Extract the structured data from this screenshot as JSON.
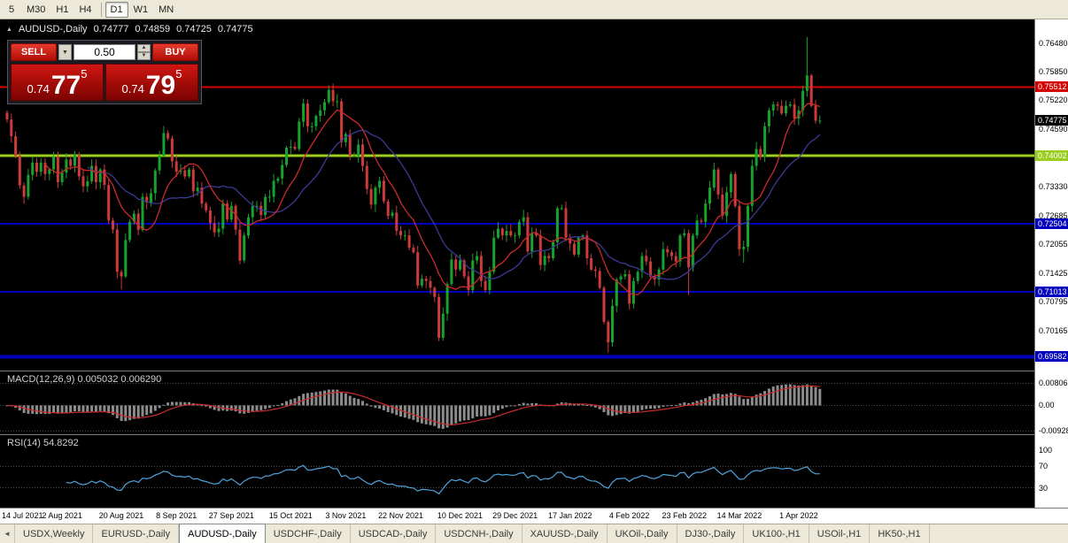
{
  "toolbar": {
    "groups": [
      [
        "5",
        "M30",
        "H1",
        "H4"
      ],
      [
        "D1",
        "W1",
        "MN"
      ]
    ],
    "active": "D1"
  },
  "header": {
    "icon": "▲",
    "symbol": "AUDUSD-,Daily",
    "open": "0.74777",
    "high": "0.74859",
    "low": "0.74725",
    "close": "0.74775"
  },
  "one_click": {
    "sell_label": "SELL",
    "buy_label": "BUY",
    "volume": "0.50",
    "dropdown_icon": "▼",
    "spinner_up_icon": "▲",
    "spinner_down_icon": "▼",
    "sell_price": {
      "base": "0.74",
      "pips": "77",
      "point": "5"
    },
    "buy_price": {
      "base": "0.74",
      "pips": "79",
      "point": "5"
    }
  },
  "chart": {
    "y_range": [
      0.693,
      0.7692
    ],
    "axis_labels": [
      "0.76480",
      "0.75850",
      "0.75220",
      "0.74590",
      "0.73330",
      "0.72685",
      "0.72055",
      "0.71425",
      "0.70795",
      "0.70165"
    ],
    "levels": [
      {
        "label": "0.75512",
        "value": 0.75512,
        "color": "#d40000",
        "width": 2
      },
      {
        "label": "0.74002",
        "value": 0.74002,
        "color": "#9bcd1e",
        "width": 3
      },
      {
        "label": "0.72504",
        "value": 0.72504,
        "color": "#0000be",
        "width": 2
      },
      {
        "label": "0.71013",
        "value": 0.71013,
        "color": "#0000be",
        "width": 2
      },
      {
        "label": "0.69582",
        "value": 0.69582,
        "color": "#0000be",
        "width": 4
      }
    ],
    "current_price": {
      "label": "0.74775",
      "value": 0.74775,
      "badge_color": "#000000"
    },
    "up_color": "#17a22b",
    "down_color": "#cc3a3a",
    "ma_fast_color": "#c92b2b",
    "ma_slow_color": "#3a3a96",
    "ma_fast_period": 10,
    "ma_slow_period": 20,
    "candles": {
      "first_open": 0.7495,
      "closes": [
        0.748,
        0.7443,
        0.74,
        0.7335,
        0.731,
        0.7358,
        0.7385,
        0.7365,
        0.7385,
        0.736,
        0.737,
        0.7398,
        0.7342,
        0.7363,
        0.7392,
        0.7378,
        0.7402,
        0.7355,
        0.7333,
        0.7344,
        0.7378,
        0.7342,
        0.737,
        0.7336,
        0.7258,
        0.7238,
        0.7145,
        0.7135,
        0.7215,
        0.7255,
        0.7273,
        0.7237,
        0.731,
        0.7297,
        0.7318,
        0.7368,
        0.74,
        0.745,
        0.7438,
        0.7388,
        0.7365,
        0.7368,
        0.7355,
        0.737,
        0.7322,
        0.733,
        0.7295,
        0.728,
        0.7252,
        0.7232,
        0.724,
        0.7295,
        0.726,
        0.729,
        0.7238,
        0.717,
        0.7225,
        0.7265,
        0.729,
        0.729,
        0.727,
        0.731,
        0.731,
        0.7345,
        0.735,
        0.738,
        0.7418,
        0.742,
        0.7415,
        0.7475,
        0.7515,
        0.7465,
        0.7465,
        0.7488,
        0.75,
        0.7518,
        0.7545,
        0.752,
        0.752,
        0.743,
        0.7448,
        0.74,
        0.74,
        0.7425,
        0.7378,
        0.7327,
        0.7293,
        0.733,
        0.7345,
        0.73,
        0.7268,
        0.7275,
        0.7235,
        0.7225,
        0.7225,
        0.7198,
        0.7188,
        0.7115,
        0.713,
        0.7125,
        0.711,
        0.709,
        0.7,
        0.7053,
        0.7118,
        0.7172,
        0.715,
        0.717,
        0.7135,
        0.7105,
        0.717,
        0.718,
        0.7125,
        0.7105,
        0.7145,
        0.722,
        0.724,
        0.7225,
        0.7235,
        0.7225,
        0.7225,
        0.7255,
        0.7265,
        0.719,
        0.723,
        0.7225,
        0.716,
        0.718,
        0.7175,
        0.721,
        0.7285,
        0.7285,
        0.722,
        0.7207,
        0.7183,
        0.722,
        0.7225,
        0.7175,
        0.715,
        0.7147,
        0.711,
        0.7035,
        0.699,
        0.707,
        0.7128,
        0.7135,
        0.714,
        0.7075,
        0.7125,
        0.7145,
        0.718,
        0.7168,
        0.7135,
        0.7128,
        0.715,
        0.7195,
        0.7188,
        0.718,
        0.7168,
        0.7225,
        0.723,
        0.7155,
        0.7225,
        0.7258,
        0.7255,
        0.7295,
        0.733,
        0.737,
        0.7315,
        0.7268,
        0.732,
        0.736,
        0.729,
        0.7195,
        0.72,
        0.729,
        0.7378,
        0.7415,
        0.7398,
        0.7465,
        0.75,
        0.7513,
        0.751,
        0.7493,
        0.751,
        0.7513,
        0.7482,
        0.75,
        0.7543,
        0.7577,
        0.751,
        0.7477,
        0.74775
      ],
      "wick_overrides": {
        "27": {
          "low": 0.7106
        },
        "76": {
          "high": 0.7555
        },
        "102": {
          "low": 0.6993
        },
        "142": {
          "low": 0.6968
        },
        "161": {
          "low": 0.7094
        },
        "174": {
          "low": 0.7165
        },
        "189": {
          "high": 0.7661
        }
      }
    }
  },
  "macd": {
    "label": "MACD(12,26,9) 0.005032 0.006290",
    "y_range": [
      -0.0095,
      0.0085
    ],
    "axis_labels": [
      {
        "text": "0.00806",
        "value": 0.00806
      },
      {
        "text": "0.00",
        "value": 0
      },
      {
        "text": "-0.00928",
        "value": -0.00928
      }
    ],
    "hist_color": "#8c8c8c",
    "signal_color": "#c92b2b"
  },
  "rsi": {
    "label": "RSI(14) 54.8292",
    "y_range": [
      0,
      115
    ],
    "levels": [
      70,
      30
    ],
    "axis_labels": [
      {
        "text": "100",
        "value": 100
      },
      {
        "text": "70",
        "value": 70
      },
      {
        "text": "30",
        "value": 30
      }
    ],
    "line_color": "#4ea3dc"
  },
  "x_axis": {
    "labels": [
      "14 Jul 2021",
      "2 Aug 2021",
      "20 Aug 2021",
      "8 Sep 2021",
      "27 Sep 2021",
      "15 Oct 2021",
      "3 Nov 2021",
      "22 Nov 2021",
      "10 Dec 2021",
      "29 Dec 2021",
      "17 Jan 2022",
      "4 Feb 2022",
      "23 Feb 2022",
      "14 Mar 2022",
      "1 Apr 2022"
    ],
    "indices": [
      0,
      13,
      27,
      40,
      53,
      67,
      80,
      93,
      107,
      120,
      133,
      147,
      160,
      173,
      187
    ]
  },
  "bottom_tabs": {
    "scroll_left_icon": "◄",
    "items": [
      "USDX,Weekly",
      "EURUSD-,Daily",
      "AUDUSD-,Daily",
      "USDCHF-,Daily",
      "USDCAD-,Daily",
      "USDCNH-,Daily",
      "XAUUSD-,Daily",
      "UKOil-,Daily",
      "DJ30-,Daily",
      "UK100-,H1",
      "USOil-,H1",
      "HK50-,H1"
    ],
    "active_index": 2
  }
}
